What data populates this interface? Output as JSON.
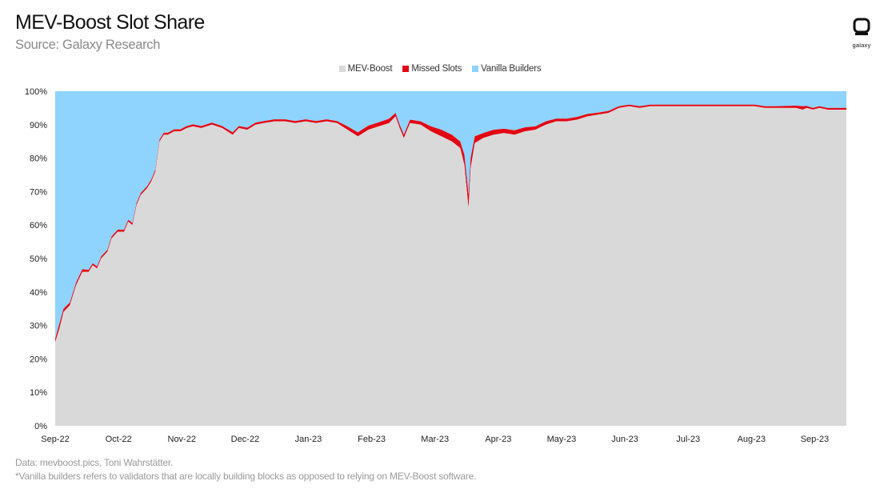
{
  "header": {
    "title": "MEV-Boost Slot Share",
    "subtitle": "Source: Galaxy Research"
  },
  "logo": {
    "word": "galaxy"
  },
  "footer": {
    "data_note": "Data: mevboost.pics, Toni Wahrstätter.",
    "footnote": "*Vanilla builders refers to validators that are locally building blocks as opposed to relying on MEV-Boost software."
  },
  "chart_data": {
    "type": "area",
    "stacked": true,
    "x_tick_labels": [
      "Sep-22",
      "Oct-22",
      "Nov-22",
      "Dec-22",
      "Jan-23",
      "Feb-23",
      "Mar-23",
      "Apr-23",
      "May-23",
      "Jun-23",
      "Jul-23",
      "Aug-23",
      "Sep-23"
    ],
    "y_tick_labels": [
      "0%",
      "10%",
      "20%",
      "30%",
      "40%",
      "50%",
      "60%",
      "70%",
      "80%",
      "90%",
      "100%"
    ],
    "ylim": [
      0,
      100
    ],
    "grid": false,
    "legend_position": "top-center",
    "x_range_days": [
      0,
      379
    ],
    "series": [
      {
        "name": "MEV-Boost",
        "color": "#d9d9d9"
      },
      {
        "name": "Missed Slots",
        "color": "#e30613"
      },
      {
        "name": "Vanilla Builders",
        "color": "#8fd3ff"
      }
    ],
    "points": [
      {
        "d": 0,
        "mev": 25,
        "missed": 1.0
      },
      {
        "d": 2,
        "mev": 29,
        "missed": 1.5
      },
      {
        "d": 4,
        "mev": 34,
        "missed": 1.0
      },
      {
        "d": 7,
        "mev": 36,
        "missed": 0.8
      },
      {
        "d": 10,
        "mev": 42,
        "missed": 0.8
      },
      {
        "d": 13,
        "mev": 46,
        "missed": 0.8
      },
      {
        "d": 16,
        "mev": 46,
        "missed": 0.6
      },
      {
        "d": 18,
        "mev": 48,
        "missed": 0.6
      },
      {
        "d": 20,
        "mev": 47,
        "missed": 0.6
      },
      {
        "d": 22,
        "mev": 50,
        "missed": 0.6
      },
      {
        "d": 25,
        "mev": 52,
        "missed": 0.6
      },
      {
        "d": 27,
        "mev": 56,
        "missed": 0.6
      },
      {
        "d": 30,
        "mev": 58,
        "missed": 0.6
      },
      {
        "d": 33,
        "mev": 58,
        "missed": 0.6
      },
      {
        "d": 35,
        "mev": 61,
        "missed": 0.6
      },
      {
        "d": 37,
        "mev": 60,
        "missed": 0.6
      },
      {
        "d": 39,
        "mev": 66,
        "missed": 0.6
      },
      {
        "d": 41,
        "mev": 69,
        "missed": 0.6
      },
      {
        "d": 44,
        "mev": 71,
        "missed": 0.6
      },
      {
        "d": 46,
        "mev": 73,
        "missed": 0.6
      },
      {
        "d": 48,
        "mev": 76,
        "missed": 0.6
      },
      {
        "d": 50,
        "mev": 85,
        "missed": 0.6
      },
      {
        "d": 52,
        "mev": 87,
        "missed": 0.6
      },
      {
        "d": 54,
        "mev": 87,
        "missed": 0.6
      },
      {
        "d": 57,
        "mev": 88,
        "missed": 0.6
      },
      {
        "d": 60,
        "mev": 88,
        "missed": 0.6
      },
      {
        "d": 63,
        "mev": 89,
        "missed": 0.6
      },
      {
        "d": 66,
        "mev": 89.5,
        "missed": 0.6
      },
      {
        "d": 70,
        "mev": 89,
        "missed": 0.6
      },
      {
        "d": 75,
        "mev": 90,
        "missed": 0.6
      },
      {
        "d": 80,
        "mev": 89,
        "missed": 0.6
      },
      {
        "d": 85,
        "mev": 87,
        "missed": 0.7
      },
      {
        "d": 88,
        "mev": 89,
        "missed": 0.6
      },
      {
        "d": 92,
        "mev": 88.5,
        "missed": 0.6
      },
      {
        "d": 96,
        "mev": 90,
        "missed": 0.6
      },
      {
        "d": 100,
        "mev": 90.5,
        "missed": 0.6
      },
      {
        "d": 105,
        "mev": 91,
        "missed": 0.6
      },
      {
        "d": 110,
        "mev": 91,
        "missed": 0.6
      },
      {
        "d": 115,
        "mev": 90.5,
        "missed": 0.6
      },
      {
        "d": 120,
        "mev": 91,
        "missed": 0.6
      },
      {
        "d": 125,
        "mev": 90.5,
        "missed": 0.6
      },
      {
        "d": 130,
        "mev": 91,
        "missed": 0.6
      },
      {
        "d": 135,
        "mev": 90.5,
        "missed": 0.6
      },
      {
        "d": 140,
        "mev": 88.5,
        "missed": 1.0
      },
      {
        "d": 145,
        "mev": 86.5,
        "missed": 1.2
      },
      {
        "d": 150,
        "mev": 88.5,
        "missed": 1.2
      },
      {
        "d": 155,
        "mev": 89.5,
        "missed": 1.2
      },
      {
        "d": 160,
        "mev": 90.5,
        "missed": 1.3
      },
      {
        "d": 163,
        "mev": 92.5,
        "missed": 1.0
      },
      {
        "d": 165,
        "mev": 89,
        "missed": 1.0
      },
      {
        "d": 167,
        "mev": 86,
        "missed": 1.0
      },
      {
        "d": 170,
        "mev": 90.5,
        "missed": 1.0
      },
      {
        "d": 175,
        "mev": 90,
        "missed": 1.0
      },
      {
        "d": 180,
        "mev": 88,
        "missed": 1.5
      },
      {
        "d": 185,
        "mev": 86.5,
        "missed": 2.0
      },
      {
        "d": 190,
        "mev": 85,
        "missed": 2.0
      },
      {
        "d": 194,
        "mev": 83,
        "missed": 2.0
      },
      {
        "d": 196,
        "mev": 78,
        "missed": 3.0
      },
      {
        "d": 198,
        "mev": 65,
        "missed": 4.0
      },
      {
        "d": 199,
        "mev": 77,
        "missed": 3.0
      },
      {
        "d": 201,
        "mev": 84.5,
        "missed": 2.0
      },
      {
        "d": 205,
        "mev": 86,
        "missed": 1.5
      },
      {
        "d": 210,
        "mev": 87,
        "missed": 1.5
      },
      {
        "d": 215,
        "mev": 87.5,
        "missed": 1.3
      },
      {
        "d": 220,
        "mev": 87,
        "missed": 1.3
      },
      {
        "d": 225,
        "mev": 88,
        "missed": 1.2
      },
      {
        "d": 230,
        "mev": 88.5,
        "missed": 1.0
      },
      {
        "d": 235,
        "mev": 90,
        "missed": 1.0
      },
      {
        "d": 240,
        "mev": 91,
        "missed": 0.8
      },
      {
        "d": 245,
        "mev": 91,
        "missed": 0.8
      },
      {
        "d": 250,
        "mev": 91.5,
        "missed": 0.8
      },
      {
        "d": 255,
        "mev": 92.5,
        "missed": 0.7
      },
      {
        "d": 260,
        "mev": 93,
        "missed": 0.6
      },
      {
        "d": 265,
        "mev": 93.5,
        "missed": 0.6
      },
      {
        "d": 270,
        "mev": 95,
        "missed": 0.5
      },
      {
        "d": 275,
        "mev": 95.5,
        "missed": 0.5
      },
      {
        "d": 280,
        "mev": 95,
        "missed": 0.5
      },
      {
        "d": 285,
        "mev": 95.5,
        "missed": 0.5
      },
      {
        "d": 290,
        "mev": 95.5,
        "missed": 0.5
      },
      {
        "d": 295,
        "mev": 95.5,
        "missed": 0.5
      },
      {
        "d": 300,
        "mev": 95.5,
        "missed": 0.5
      },
      {
        "d": 305,
        "mev": 95.5,
        "missed": 0.5
      },
      {
        "d": 310,
        "mev": 95.5,
        "missed": 0.5
      },
      {
        "d": 315,
        "mev": 95.5,
        "missed": 0.5
      },
      {
        "d": 320,
        "mev": 95.5,
        "missed": 0.5
      },
      {
        "d": 325,
        "mev": 95.5,
        "missed": 0.5
      },
      {
        "d": 330,
        "mev": 95.5,
        "missed": 0.5
      },
      {
        "d": 335,
        "mev": 95.5,
        "missed": 0.5
      },
      {
        "d": 340,
        "mev": 95,
        "missed": 0.5
      },
      {
        "d": 345,
        "mev": 95,
        "missed": 0.5
      },
      {
        "d": 350,
        "mev": 95,
        "missed": 0.6
      },
      {
        "d": 355,
        "mev": 95,
        "missed": 0.7
      },
      {
        "d": 358,
        "mev": 94.5,
        "missed": 1.0
      },
      {
        "d": 360,
        "mev": 95,
        "missed": 0.6
      },
      {
        "d": 363,
        "mev": 94.5,
        "missed": 0.5
      },
      {
        "d": 366,
        "mev": 95,
        "missed": 0.5
      },
      {
        "d": 370,
        "mev": 94.5,
        "missed": 0.5
      },
      {
        "d": 375,
        "mev": 94.5,
        "missed": 0.5
      },
      {
        "d": 379,
        "mev": 94.5,
        "missed": 0.5
      }
    ]
  }
}
